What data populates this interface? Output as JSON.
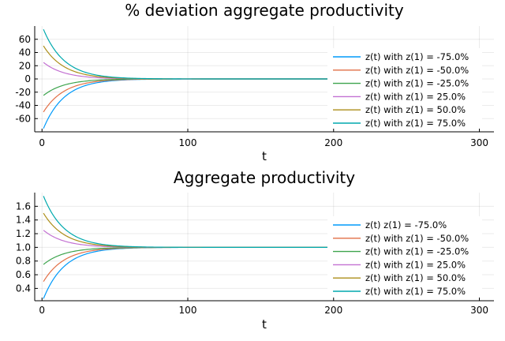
{
  "chart_data": [
    {
      "type": "line",
      "title": "% deviation aggregate productivity",
      "xlabel": "t",
      "ylabel": "",
      "xlim": [
        -5,
        310
      ],
      "ylim": [
        -80,
        80
      ],
      "xticks": [
        0,
        100,
        200,
        300
      ],
      "yticks": [
        -60,
        -40,
        -20,
        0,
        20,
        40,
        60
      ],
      "grid": true,
      "legend_position": "right",
      "steady_state": 0,
      "decay_rate_per_period": 0.07,
      "t_range": [
        1,
        300
      ],
      "series": [
        {
          "name": "z(t) with z(1) = -75.0%",
          "color": "#009AFA",
          "z1": -75
        },
        {
          "name": "z(t) with z(1) = -50.0%",
          "color": "#E26F46",
          "z1": -50
        },
        {
          "name": "z(t) with z(1) = -25.0%",
          "color": "#3DA44D",
          "z1": -25
        },
        {
          "name": "z(t) with z(1) = 25.0%",
          "color": "#C371D2",
          "z1": 25
        },
        {
          "name": "z(t) with z(1) = 50.0%",
          "color": "#AC8E18",
          "z1": 50
        },
        {
          "name": "z(t) with z(1) = 75.0%",
          "color": "#00A9AD",
          "z1": 75
        }
      ]
    },
    {
      "type": "line",
      "title": "Aggregate productivity",
      "xlabel": "t",
      "ylabel": "",
      "xlim": [
        -5,
        310
      ],
      "ylim": [
        0.22,
        1.8
      ],
      "xticks": [
        0,
        100,
        200,
        300
      ],
      "yticks": [
        0.4,
        0.6,
        0.8,
        1.0,
        1.2,
        1.4,
        1.6
      ],
      "grid": true,
      "legend_position": "right",
      "steady_state": 1.0,
      "decay_rate_per_period": 0.07,
      "t_range": [
        1,
        300
      ],
      "series": [
        {
          "name": "z(t) z(1) = -75.0%",
          "color": "#009AFA",
          "z1": 0.25
        },
        {
          "name": "z(t) with z(1) = -50.0%",
          "color": "#E26F46",
          "z1": 0.5
        },
        {
          "name": "z(t) with z(1) = -25.0%",
          "color": "#3DA44D",
          "z1": 0.75
        },
        {
          "name": "z(t) with z(1) = 25.0%",
          "color": "#C371D2",
          "z1": 1.25
        },
        {
          "name": "z(t) with z(1) = 50.0%",
          "color": "#AC8E18",
          "z1": 1.5
        },
        {
          "name": "z(t) with z(1) = 75.0%",
          "color": "#00A9AD",
          "z1": 1.75
        }
      ]
    }
  ]
}
